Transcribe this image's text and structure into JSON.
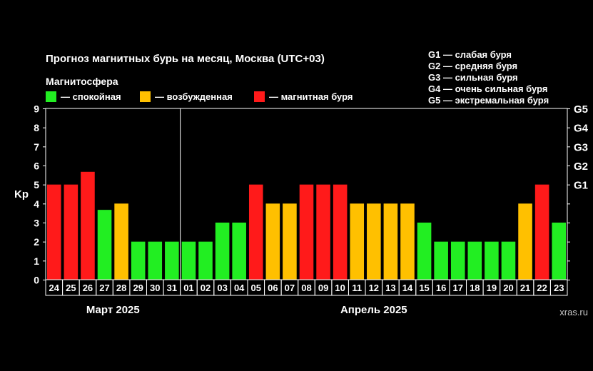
{
  "title": "Прогноз магнитных бурь на месяц, Москва (UTC+03)",
  "legend": {
    "title": "Магнитосфера",
    "items": [
      {
        "label": "— спокойная",
        "color": "#22ee22"
      },
      {
        "label": "— возбужденная",
        "color": "#ffc000"
      },
      {
        "label": "— магнитная буря",
        "color": "#ff1a1a"
      }
    ]
  },
  "g_scale": [
    "G1 — слабая буря",
    "G2 — средняя буря",
    "G3 — сильная буря",
    "G4 — очень сильная буря",
    "G5 — экстремальная буря"
  ],
  "watermark": "xras.ru",
  "chart_data": {
    "type": "bar",
    "ylabel": "Kp",
    "ylim": [
      0,
      9
    ],
    "yticks": [
      "0",
      "1",
      "2",
      "3",
      "4",
      "5",
      "6",
      "7",
      "8",
      "9"
    ],
    "right_axis": [
      {
        "label": "G1",
        "kp": 5
      },
      {
        "label": "G2",
        "kp": 6
      },
      {
        "label": "G3",
        "kp": 7
      },
      {
        "label": "G4",
        "kp": 8
      },
      {
        "label": "G5",
        "kp": 9
      }
    ],
    "months": [
      {
        "label": "Март 2025",
        "start": 0,
        "count": 8
      },
      {
        "label": "Апрель 2025",
        "start": 8,
        "count": 23
      }
    ],
    "categories": [
      "24",
      "25",
      "26",
      "27",
      "28",
      "29",
      "30",
      "31",
      "01",
      "02",
      "03",
      "04",
      "05",
      "06",
      "07",
      "08",
      "09",
      "10",
      "11",
      "12",
      "13",
      "14",
      "15",
      "16",
      "17",
      "18",
      "19",
      "20",
      "21",
      "22",
      "23"
    ],
    "values": [
      5,
      5,
      5.67,
      3.67,
      4,
      2,
      2,
      2,
      2,
      2,
      3,
      3,
      5,
      4,
      4,
      5,
      5,
      5,
      4,
      4,
      4,
      4,
      3,
      2,
      2,
      2,
      2,
      2,
      4,
      5,
      3
    ],
    "status": [
      "storm",
      "storm",
      "storm",
      "quiet",
      "active",
      "quiet",
      "quiet",
      "quiet",
      "quiet",
      "quiet",
      "quiet",
      "quiet",
      "storm",
      "active",
      "active",
      "storm",
      "storm",
      "storm",
      "active",
      "active",
      "active",
      "active",
      "quiet",
      "quiet",
      "quiet",
      "quiet",
      "quiet",
      "quiet",
      "active",
      "storm",
      "quiet"
    ],
    "status_colors": {
      "quiet": "#22ee22",
      "active": "#ffc000",
      "storm": "#ff1a1a"
    }
  }
}
